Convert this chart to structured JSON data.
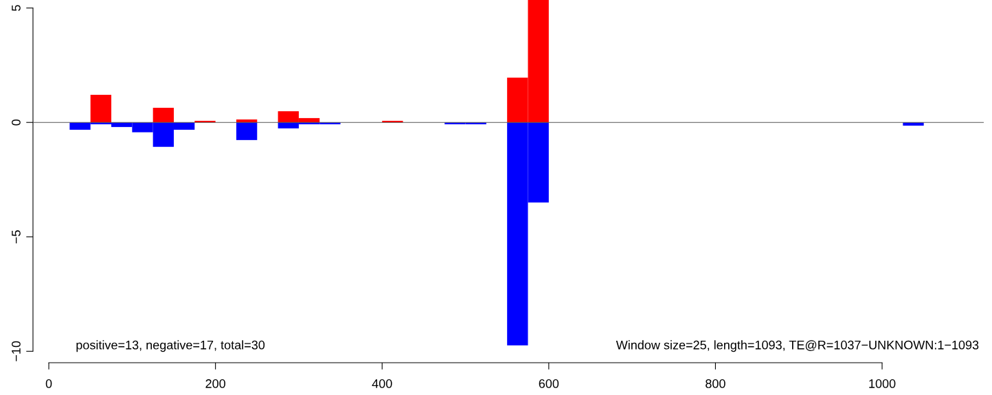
{
  "chart_data": {
    "type": "bar",
    "x": [
      37.5,
      62.5,
      87.5,
      112.5,
      137.5,
      162.5,
      187.5,
      237.5,
      287.5,
      312.5,
      337.5,
      412.5,
      487.5,
      512.5,
      562.5,
      587.5,
      1037.5
    ],
    "series": [
      {
        "color": "#ff0000",
        "values": [
          null,
          1.21,
          null,
          null,
          0.64,
          null,
          0.07,
          0.13,
          0.49,
          0.19,
          null,
          0.07,
          null,
          null,
          1.96,
          5.35,
          null
        ]
      },
      {
        "color": "#0000ff",
        "values": [
          -0.32,
          -0.08,
          -0.2,
          -0.43,
          -1.07,
          -0.32,
          null,
          -0.77,
          -0.26,
          -0.08,
          -0.08,
          null,
          -0.08,
          -0.08,
          -9.74,
          -3.5,
          -0.14
        ]
      }
    ],
    "xlim": [
      -19,
      1122
    ],
    "xticks": [
      0,
      200,
      400,
      600,
      800,
      1000
    ],
    "ylim": [
      -10.5,
      5.35
    ],
    "yticks": [
      -10,
      -5,
      0,
      5
    ],
    "ref_lines": [
      {
        "axis": "y",
        "value": 0,
        "color": "#555555"
      }
    ],
    "annotations": [
      "positive=13, negative=17, total=30",
      "Window size=25, length=1093, TE@R=1037−UNKNOWN:1−1093"
    ],
    "grid": false,
    "legend": false
  }
}
